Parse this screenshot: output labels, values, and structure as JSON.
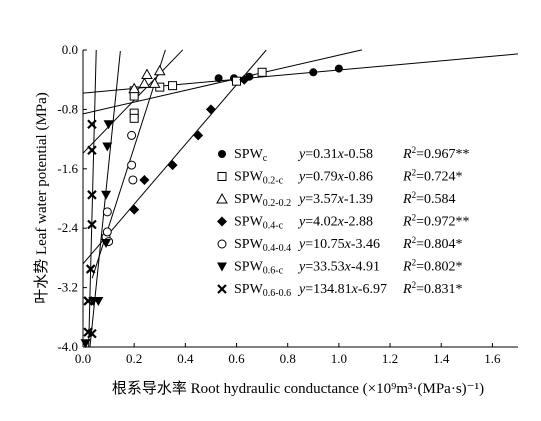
{
  "chart_data": {
    "type": "scatter",
    "xlabel": "根系导水率 Root hydraulic conductance (×10⁹m³·(MPa·s)⁻¹)",
    "ylabel": "叶水势 Leaf water potential (MPa)",
    "xlim": [
      0.0,
      1.7
    ],
    "ylim": [
      -4.0,
      0.0
    ],
    "xticks": [
      "0.0",
      "0.2",
      "0.4",
      "0.6",
      "0.8",
      "1.0",
      "1.2",
      "1.4",
      "1.6"
    ],
    "yticks": [
      "0.0",
      "-0.8",
      "-1.6",
      "-2.4",
      "-3.2",
      "-4.0"
    ],
    "grid": false,
    "legend_position": "right-center",
    "series": [
      {
        "name": "SPWc",
        "name_base": "SPW",
        "name_sub": "c",
        "marker": "filled-circle",
        "equation": "y=0.31x-0.58",
        "r2": "=0.967**",
        "slope": 0.31,
        "intercept": -0.58,
        "line_x": [
          0.0,
          1.7
        ],
        "points": [
          [
            0.53,
            -0.38
          ],
          [
            0.59,
            -0.38
          ],
          [
            0.65,
            -0.36
          ],
          [
            0.9,
            -0.3
          ],
          [
            1.0,
            -0.25
          ]
        ]
      },
      {
        "name": "SPW0.2-c",
        "name_base": "SPW",
        "name_sub": "0.2-c",
        "marker": "open-square",
        "equation": "y=0.79x-0.86",
        "r2": "=0.724*",
        "slope": 0.79,
        "intercept": -0.86,
        "line_x": [
          0.0,
          1.09
        ],
        "points": [
          [
            0.2,
            -0.55
          ],
          [
            0.2,
            -0.62
          ],
          [
            0.2,
            -0.85
          ],
          [
            0.2,
            -0.92
          ],
          [
            0.3,
            -0.5
          ],
          [
            0.35,
            -0.48
          ],
          [
            0.6,
            -0.42
          ],
          [
            0.7,
            -0.3
          ]
        ]
      },
      {
        "name": "SPW0.2-0.2",
        "name_base": "SPW",
        "name_sub": "0.2-0.2",
        "marker": "open-triangle",
        "equation": "y=3.57x-1.39",
        "r2": "=0.584",
        "slope": 3.57,
        "intercept": -1.39,
        "line_x": [
          0.0,
          0.39
        ],
        "points": [
          [
            0.2,
            -0.52
          ],
          [
            0.24,
            -0.45
          ],
          [
            0.25,
            -0.33
          ],
          [
            0.28,
            -0.45
          ],
          [
            0.3,
            -0.28
          ]
        ]
      },
      {
        "name": "SPW0.4-c",
        "name_base": "SPW",
        "name_sub": "0.4-c",
        "marker": "filled-diamond",
        "equation": "y=4.02x-2.88",
        "r2": "=0.972**",
        "slope": 4.02,
        "intercept": -2.88,
        "line_x": [
          0.0,
          0.716
        ],
        "points": [
          [
            0.2,
            -2.15
          ],
          [
            0.24,
            -1.75
          ],
          [
            0.35,
            -1.55
          ],
          [
            0.45,
            -1.15
          ],
          [
            0.5,
            -0.8
          ],
          [
            0.63,
            -0.4
          ]
        ]
      },
      {
        "name": "SPW0.4-0.4",
        "name_base": "SPW",
        "name_sub": "0.4-0.4",
        "marker": "open-circle",
        "equation": "y=10.75x-3.46",
        "r2": "=0.804*",
        "slope": 10.75,
        "intercept": -3.46,
        "line_x": [
          0.036,
          0.322
        ],
        "points": [
          [
            0.09,
            -2.52
          ],
          [
            0.095,
            -2.45
          ],
          [
            0.095,
            -2.18
          ],
          [
            0.1,
            -2.58
          ],
          [
            0.19,
            -1.15
          ],
          [
            0.19,
            -1.55
          ],
          [
            0.195,
            -1.75
          ]
        ]
      },
      {
        "name": "SPW0.6-c",
        "name_base": "SPW",
        "name_sub": "0.6-c",
        "marker": "filled-down-triangle",
        "equation": "y=33.53x-4.91",
        "r2": "=0.802*",
        "slope": 33.53,
        "intercept": -4.91,
        "line_x": [
          0.027,
          0.146
        ],
        "points": [
          [
            0.01,
            -3.95
          ],
          [
            0.04,
            -3.38
          ],
          [
            0.06,
            -3.38
          ],
          [
            0.09,
            -1.95
          ],
          [
            0.09,
            -2.6
          ],
          [
            0.1,
            -1.0
          ],
          [
            0.095,
            -1.3
          ]
        ]
      },
      {
        "name": "SPW0.6-0.6",
        "name_base": "SPW",
        "name_sub": "0.6-0.6",
        "marker": "x-cross",
        "equation": "y=134.81x-6.97",
        "r2": "=0.831*",
        "slope": 134.81,
        "intercept": -6.97,
        "line_x": [
          0.022,
          0.0517
        ],
        "points": [
          [
            0.02,
            -3.38
          ],
          [
            0.02,
            -3.8
          ],
          [
            0.03,
            -2.95
          ],
          [
            0.035,
            -1.0
          ],
          [
            0.035,
            -1.35
          ],
          [
            0.035,
            -1.95
          ],
          [
            0.035,
            -2.35
          ],
          [
            0.035,
            -3.82
          ]
        ]
      }
    ]
  }
}
